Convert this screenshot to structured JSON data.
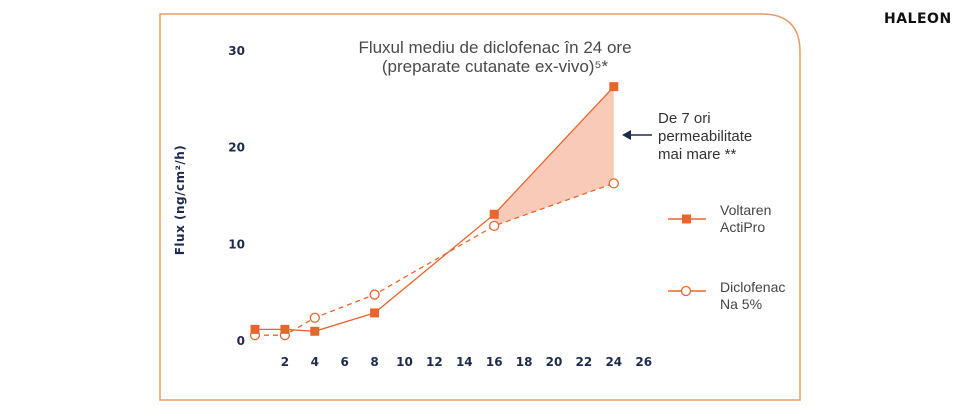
{
  "brand": "HALEON",
  "chart_data": {
    "type": "line",
    "title": "Fluxul mediu de diclofenac în 24 ore",
    "subtitle": "(preparate cutanate ex-vivo)⁵*",
    "ylabel": "Flux (ng/cm²/h)",
    "xlabel": "",
    "ylim": [
      0,
      30
    ],
    "yticks": [
      0,
      10,
      20,
      30
    ],
    "xticks": [
      2,
      4,
      6,
      8,
      10,
      12,
      14,
      16,
      18,
      20,
      22,
      24,
      26
    ],
    "grid": false,
    "legend_position": "right",
    "series": [
      {
        "name_lines": [
          "Voltaren",
          "ActiPro"
        ],
        "marker": "filled-square",
        "line_style": "solid",
        "x": [
          0,
          2,
          4,
          8,
          16,
          24
        ],
        "y": [
          1.1,
          1.1,
          0.9,
          2.8,
          13.0,
          26.2
        ]
      },
      {
        "name_lines": [
          "Diclofenac",
          "Na 5%"
        ],
        "marker": "open-circle",
        "line_style": "dashed",
        "x": [
          0,
          2,
          4,
          8,
          16,
          24
        ],
        "y": [
          0.5,
          0.5,
          2.3,
          4.7,
          11.8,
          16.2
        ]
      }
    ],
    "annotation": {
      "lines": [
        "De 7 ori",
        "permeabilitate",
        "mai mare **"
      ]
    },
    "colors": {
      "primary": "#e8662e",
      "fill": "#f7c1aa",
      "axis_text": "#1f2b4d",
      "frame": "#e89a6a"
    }
  }
}
